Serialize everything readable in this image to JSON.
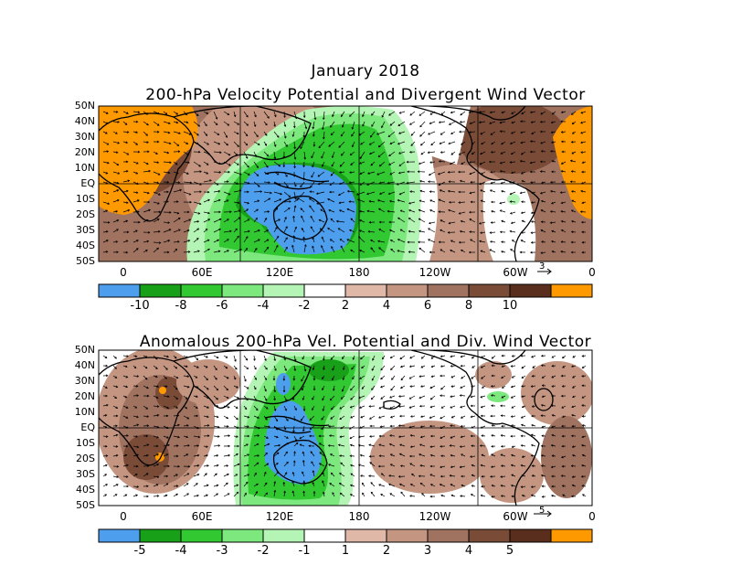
{
  "panel1": {
    "title_line1": "January 2018",
    "title_line2": "200-hPa Velocity Potential and Divergent Wind Vector",
    "ref_vector": "3",
    "colorbar": {
      "colors": [
        "#4e9eee",
        "#19a019",
        "#31c831",
        "#7de87d",
        "#b4f4b4",
        "#ffffff",
        "#e0b8a8",
        "#c49682",
        "#a07260",
        "#7a4c38",
        "#5a2e1c",
        "#ff9900"
      ],
      "labels": [
        "-10",
        "-8",
        "-6",
        "-4",
        "-2",
        "2",
        "4",
        "6",
        "8",
        "10"
      ]
    }
  },
  "panel2": {
    "title": "Anomalous 200-hPa Vel. Potential and Div. Wind Vector",
    "ref_vector": "5",
    "colorbar": {
      "colors": [
        "#4e9eee",
        "#19a019",
        "#31c831",
        "#7de87d",
        "#b4f4b4",
        "#ffffff",
        "#e0b8a8",
        "#c49682",
        "#a07260",
        "#7a4c38",
        "#5a2e1c",
        "#ff9900"
      ],
      "labels": [
        "-5",
        "-4",
        "-3",
        "-2",
        "-1",
        "1",
        "2",
        "3",
        "4",
        "5"
      ]
    }
  },
  "lat_labels": [
    "50N",
    "40N",
    "30N",
    "20N",
    "10N",
    "EQ",
    "10S",
    "20S",
    "30S",
    "40S",
    "50S"
  ],
  "lon_labels": [
    "0",
    "60E",
    "120E",
    "180",
    "120W",
    "60W",
    "0"
  ]
}
